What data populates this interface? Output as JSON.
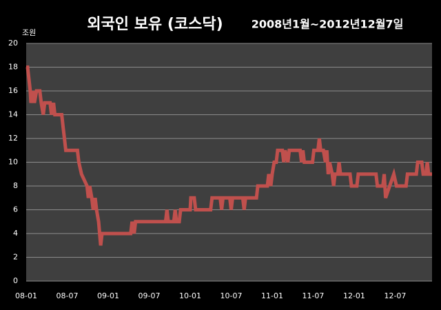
{
  "chart_data": {
    "type": "line",
    "title": "외국인 보유 (코스닥)",
    "subtitle": "2008년1월~2012년12월7일",
    "y_unit": "조원",
    "xlim": [
      0,
      59.4
    ],
    "ylim": [
      0,
      20
    ],
    "xticks": [
      {
        "value": 0,
        "label": "08-01"
      },
      {
        "value": 6,
        "label": "08-07"
      },
      {
        "value": 12,
        "label": "09-01"
      },
      {
        "value": 18,
        "label": "09-07"
      },
      {
        "value": 24,
        "label": "10-01"
      },
      {
        "value": 30,
        "label": "10-07"
      },
      {
        "value": 36,
        "label": "11-01"
      },
      {
        "value": 42,
        "label": "11-07"
      },
      {
        "value": 48,
        "label": "12-01"
      },
      {
        "value": 54,
        "label": "12-07"
      }
    ],
    "yticks": [
      0,
      2,
      4,
      6,
      8,
      10,
      12,
      14,
      16,
      18,
      20
    ],
    "grid": true,
    "series": [
      {
        "color": "#c0504d",
        "x": [
          0,
          0.2,
          0.4,
          0.6,
          0.7,
          1.0,
          1.2,
          1.5,
          2.0,
          2.2,
          2.5,
          2.7,
          3.5,
          3.7,
          4.0,
          4.2,
          5.2,
          5.4,
          5.6,
          5.8,
          7.5,
          7.7,
          8.1,
          8.9,
          9.1,
          9.3,
          9.6,
          9.8,
          10.1,
          10.3,
          10.6,
          10.9,
          11.1,
          15.3,
          15.5,
          15.8,
          16.0,
          20.4,
          20.6,
          20.8,
          21.6,
          21.8,
          22.0,
          22.4,
          22.6,
          23.0,
          24.0,
          24.1,
          24.6,
          24.8,
          27.0,
          27.2,
          28.4,
          28.6,
          28.8,
          29.8,
          30.0,
          30.2,
          31.7,
          31.9,
          32.1,
          33.7,
          33.9,
          35.3,
          35.5,
          35.8,
          36.0,
          36.3,
          36.6,
          36.8,
          37.5,
          37.7,
          37.9,
          38.3,
          38.5,
          40.1,
          40.3,
          40.5,
          40.7,
          41.9,
          42.1,
          42.7,
          42.9,
          43.1,
          43.5,
          43.8,
          44.0,
          44.2,
          44.4,
          44.8,
          45.0,
          45.2,
          45.6,
          45.8,
          46.0,
          47.4,
          47.6,
          48.4,
          48.6,
          51.2,
          51.4,
          52.2,
          52.4,
          52.6,
          53.2,
          53.8,
          54.2,
          55.6,
          55.8,
          57.1,
          57.3,
          57.9,
          58.1,
          58.5,
          58.7,
          58.9,
          59.4
        ],
        "values": [
          18,
          18,
          17,
          16,
          15,
          16,
          15,
          16,
          16,
          15,
          14,
          15,
          15,
          14,
          15,
          14,
          14,
          13,
          12,
          11,
          11,
          10,
          9,
          8,
          7,
          8,
          7,
          6,
          7,
          6,
          5,
          3,
          4,
          4,
          5,
          4,
          5,
          5,
          6,
          5,
          5,
          6,
          5,
          5,
          6,
          6,
          6,
          7,
          7,
          6,
          6,
          7,
          7,
          6,
          7,
          7,
          6,
          7,
          7,
          6,
          7,
          7,
          8,
          8,
          9,
          8,
          9,
          10,
          10,
          11,
          11,
          10,
          11,
          10,
          11,
          11,
          10,
          11,
          10,
          10,
          11,
          11,
          12,
          11,
          11,
          10,
          11,
          9,
          10,
          9,
          8,
          9,
          9,
          10,
          9,
          9,
          8,
          8,
          9,
          9,
          8,
          8,
          9,
          7,
          8,
          9,
          8,
          8,
          9,
          9,
          10,
          10,
          9,
          9,
          10,
          9,
          9
        ]
      }
    ]
  }
}
